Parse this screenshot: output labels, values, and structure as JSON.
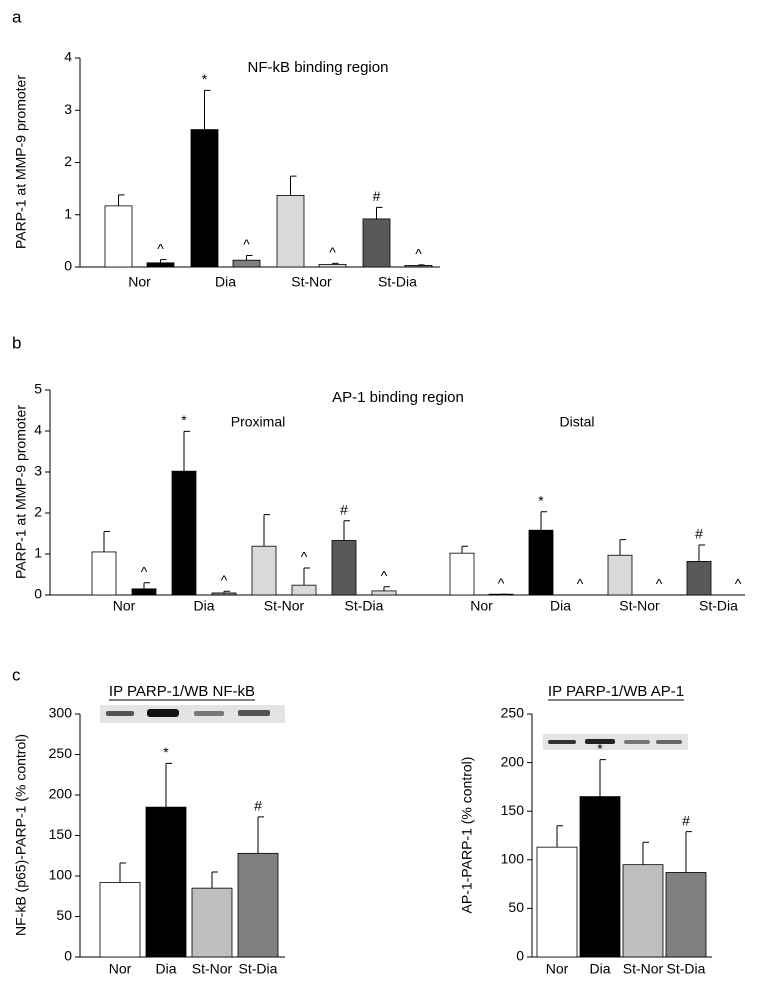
{
  "chart_data": [
    {
      "type": "bar",
      "panel_label": "a",
      "title": "NF-kB binding region",
      "ylabel": "PARP-1 at MMP-9 promoter",
      "ylim": [
        0,
        4
      ],
      "yticks": [
        0,
        1,
        2,
        3,
        4
      ],
      "sections": [
        {
          "groups": [
            {
              "category": "Nor",
              "bars": [
                {
                  "value": 1.17,
                  "error": 0.21,
                  "color": "#ffffff"
                },
                {
                  "value": 0.08,
                  "error": 0.06,
                  "color": "#000000",
                  "annotation": "^"
                }
              ]
            },
            {
              "category": "Dia",
              "bars": [
                {
                  "value": 2.63,
                  "error": 0.75,
                  "color": "#000000",
                  "annotation": "*"
                },
                {
                  "value": 0.13,
                  "error": 0.09,
                  "color": "#808080",
                  "annotation": "^"
                }
              ]
            },
            {
              "category": "St-Nor",
              "bars": [
                {
                  "value": 1.37,
                  "error": 0.37,
                  "color": "#d9d9d9"
                },
                {
                  "value": 0.05,
                  "error": 0.02,
                  "color": "#d9d9d9",
                  "annotation": "^"
                }
              ]
            },
            {
              "category": "St-Dia",
              "bars": [
                {
                  "value": 0.92,
                  "error": 0.22,
                  "color": "#595959",
                  "annotation": "#"
                },
                {
                  "value": 0.03,
                  "error": 0.01,
                  "color": "#808080",
                  "annotation": "^"
                }
              ]
            }
          ]
        }
      ]
    },
    {
      "type": "bar",
      "panel_label": "b",
      "title": "AP-1 binding region",
      "ylabel": "PARP-1 at MMP-9 promoter",
      "ylim": [
        0,
        5
      ],
      "yticks": [
        0,
        1,
        2,
        3,
        4,
        5
      ],
      "sections": [
        {
          "title": "Proximal",
          "groups": [
            {
              "category": "Nor",
              "bars": [
                {
                  "value": 1.05,
                  "error": 0.5,
                  "color": "#ffffff"
                },
                {
                  "value": 0.15,
                  "error": 0.15,
                  "color": "#000000",
                  "annotation": "^"
                }
              ]
            },
            {
              "category": "Dia",
              "bars": [
                {
                  "value": 3.02,
                  "error": 0.97,
                  "color": "#000000",
                  "annotation": "*"
                },
                {
                  "value": 0.05,
                  "error": 0.04,
                  "color": "#808080",
                  "annotation": "^"
                }
              ]
            },
            {
              "category": "St-Nor",
              "bars": [
                {
                  "value": 1.19,
                  "error": 0.77,
                  "color": "#d9d9d9"
                },
                {
                  "value": 0.24,
                  "error": 0.42,
                  "color": "#d9d9d9",
                  "annotation": "^"
                }
              ]
            },
            {
              "category": "St-Dia",
              "bars": [
                {
                  "value": 1.33,
                  "error": 0.48,
                  "color": "#595959",
                  "annotation": "#"
                },
                {
                  "value": 0.1,
                  "error": 0.1,
                  "color": "#d9d9d9",
                  "annotation": "^"
                }
              ]
            }
          ]
        },
        {
          "title": "Distal",
          "groups": [
            {
              "category": "Nor",
              "bars": [
                {
                  "value": 1.02,
                  "error": 0.17,
                  "color": "#ffffff"
                },
                {
                  "value": 0.02,
                  "error": 0,
                  "color": "#000000",
                  "annotation": "^"
                }
              ]
            },
            {
              "category": "Dia",
              "bars": [
                {
                  "value": 1.58,
                  "error": 0.45,
                  "color": "#000000",
                  "annotation": "*"
                },
                {
                  "value": 0,
                  "error": 0,
                  "color": "#808080",
                  "annotation": "^"
                }
              ]
            },
            {
              "category": "St-Nor",
              "bars": [
                {
                  "value": 0.97,
                  "error": 0.38,
                  "color": "#d9d9d9"
                },
                {
                  "value": 0,
                  "error": 0,
                  "color": "#d9d9d9",
                  "annotation": "^"
                }
              ]
            },
            {
              "category": "St-Dia",
              "bars": [
                {
                  "value": 0.82,
                  "error": 0.4,
                  "color": "#595959",
                  "annotation": "#"
                },
                {
                  "value": 0,
                  "error": 0,
                  "color": "#d9d9d9",
                  "annotation": "^"
                }
              ]
            }
          ]
        }
      ]
    },
    {
      "type": "bar",
      "panel_label": "c",
      "title": "IP PARP-1/WB NF-kB",
      "ylabel": "NF-kB (p65)-PARP-1 (% control)",
      "ylim": [
        0,
        300
      ],
      "yticks": [
        0,
        50,
        100,
        150,
        200,
        250,
        300
      ],
      "sections": [
        {
          "groups": [
            {
              "category": "Nor",
              "bars": [
                {
                  "value": 92,
                  "error": 24,
                  "color": "#ffffff"
                }
              ]
            },
            {
              "category": "Dia",
              "bars": [
                {
                  "value": 185,
                  "error": 54,
                  "color": "#000000",
                  "annotation": "*"
                }
              ]
            },
            {
              "category": "St-Nor",
              "bars": [
                {
                  "value": 85,
                  "error": 20,
                  "color": "#bfbfbf"
                }
              ]
            },
            {
              "category": "St-Dia",
              "bars": [
                {
                  "value": 128,
                  "error": 45,
                  "color": "#808080",
                  "annotation": "#"
                }
              ]
            }
          ]
        }
      ]
    },
    {
      "type": "bar",
      "title": "IP PARP-1/WB AP-1",
      "ylabel": "AP-1-PARP-1 (% control)",
      "ylim": [
        0,
        250
      ],
      "yticks": [
        0,
        50,
        100,
        150,
        200,
        250
      ],
      "sections": [
        {
          "groups": [
            {
              "category": "Nor",
              "bars": [
                {
                  "value": 113,
                  "error": 22,
                  "color": "#ffffff"
                }
              ]
            },
            {
              "category": "Dia",
              "bars": [
                {
                  "value": 165,
                  "error": 38,
                  "color": "#000000",
                  "annotation": "*"
                }
              ]
            },
            {
              "category": "St-Nor",
              "bars": [
                {
                  "value": 95,
                  "error": 23,
                  "color": "#bfbfbf"
                }
              ]
            },
            {
              "category": "St-Dia",
              "bars": [
                {
                  "value": 87,
                  "error": 42,
                  "color": "#808080",
                  "annotation": "#"
                }
              ]
            }
          ]
        }
      ]
    }
  ]
}
